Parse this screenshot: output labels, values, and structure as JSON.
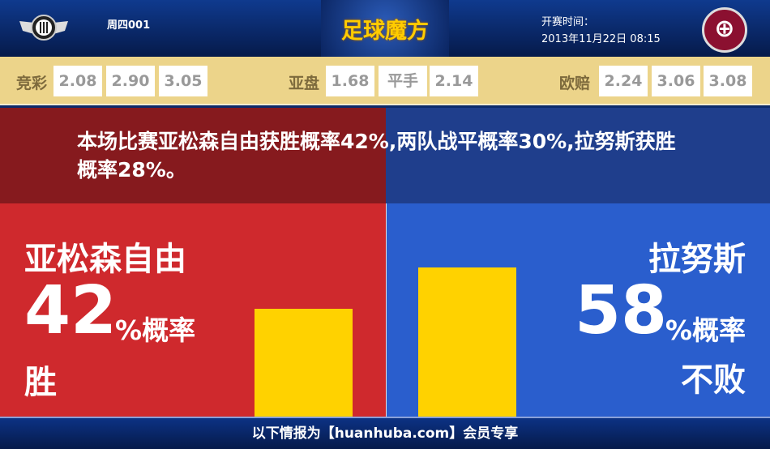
{
  "header": {
    "match_no": "周四001",
    "brand": "足球魔方",
    "time_label": "开赛时间：",
    "time_value": "2013年11月22日 08:15",
    "away_logo_glyph": "LS"
  },
  "odds": {
    "jingcai": {
      "label": "竞彩",
      "values": [
        "2.08",
        "2.90",
        "3.05"
      ]
    },
    "yapan": {
      "label": "亚盘",
      "values": [
        "1.68",
        "平手",
        "2.14"
      ]
    },
    "ouzhi": {
      "label": "欧赔",
      "values": [
        "2.24",
        "3.06",
        "3.08"
      ]
    }
  },
  "summary": "本场比赛亚松森自由获胜概率42%,两队战平概率30%,拉努斯获胜概率28%。",
  "home": {
    "name": "亚松森自由",
    "percent": "42",
    "pct_label": "%概率",
    "outcome": "胜",
    "color": "#cf292d"
  },
  "away": {
    "name": "拉努斯",
    "percent": "58",
    "pct_label": "%概率",
    "outcome": "不败",
    "color": "#2a5ecd"
  },
  "bar_color": "#ffd200",
  "footer": "以下情报为【huanhuba.com】会员专享"
}
